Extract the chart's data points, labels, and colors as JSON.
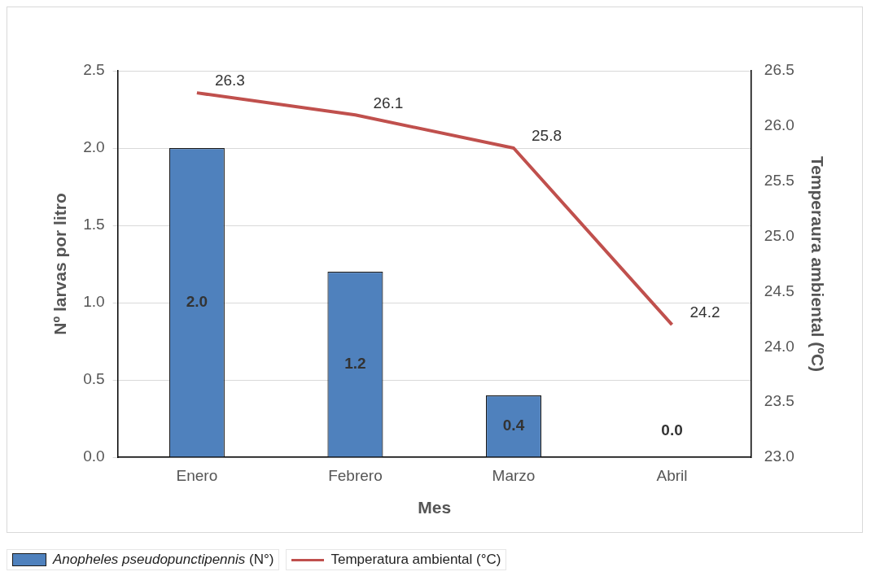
{
  "chart_data": {
    "type": "bar",
    "categories": [
      "Enero",
      "Febrero",
      "Marzo",
      "Abril"
    ],
    "xlabel": "Mes",
    "ylabel": "Nº larvas por litro",
    "y2label": "Temperaura ambiental (ºC)",
    "series": [
      {
        "name": "Anopheles pseudopunctipennis (N°)",
        "color": "#4f81bd",
        "values": [
          2.0,
          1.2,
          0.4,
          0.0
        ],
        "value_labels": [
          "2.0",
          "1.2",
          "0.4",
          "0.0"
        ]
      },
      {
        "name": "Temperatura ambiental (°C)",
        "type": "line",
        "axis": "y2",
        "color": "#c0504d",
        "values": [
          26.3,
          26.1,
          25.8,
          24.2
        ],
        "value_labels": [
          "26.3",
          "26.1",
          "25.8",
          "24.2"
        ]
      }
    ],
    "ylim": [
      0,
      2.5
    ],
    "yticks": [
      {
        "value": 0,
        "label": "0.0"
      },
      {
        "value": 0.5,
        "label": "0.5"
      },
      {
        "value": 1,
        "label": "1.0"
      },
      {
        "value": 1.5,
        "label": "1.5"
      },
      {
        "value": 2,
        "label": "2.0"
      },
      {
        "value": 2.5,
        "label": "2.5"
      }
    ],
    "y2lim": [
      23,
      26.5
    ],
    "y2ticks": [
      {
        "value": 23,
        "label": "23.0"
      },
      {
        "value": 23.5,
        "label": "23.5"
      },
      {
        "value": 24,
        "label": "24.0"
      },
      {
        "value": 24.5,
        "label": "24.5"
      },
      {
        "value": 25,
        "label": "25.0"
      },
      {
        "value": 25.5,
        "label": "25.5"
      },
      {
        "value": 26,
        "label": "26.0"
      },
      {
        "value": 26.5,
        "label": "26.5"
      }
    ],
    "grid": "y",
    "legend": "bottom",
    "marker": "none",
    "line_style": "solid"
  }
}
